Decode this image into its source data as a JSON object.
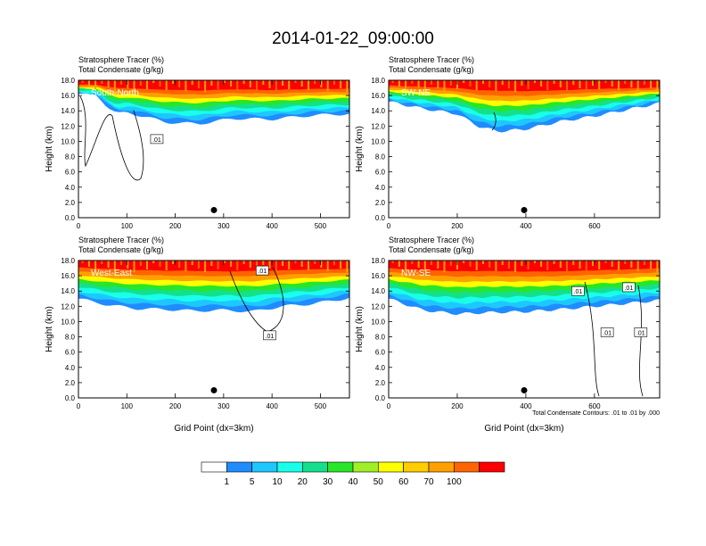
{
  "title": "2014-01-22_09:00:00",
  "chart_data": [
    {
      "type": "heatmap",
      "panel_label": "South-North",
      "header_lines": [
        "Stratosphere Tracer   (%)",
        "Total Condensate   (g/kg)"
      ],
      "ylabel": "Height (km)",
      "xlabel": "",
      "xlim": [
        0,
        560
      ],
      "ylim": [
        0,
        18
      ],
      "xticks": [
        0,
        100,
        200,
        300,
        400,
        500
      ],
      "yticks": [
        "0.0",
        "2.0",
        "4.0",
        "6.0",
        "8.0",
        "10.0",
        "12.0",
        "14.0",
        "16.0",
        "18.0"
      ],
      "marker": {
        "x": 280,
        "y": 1.0
      },
      "contour_labels": [
        {
          "text": ".01",
          "x": 162,
          "y": 10.3
        }
      ],
      "tracer_profile": {
        "x": [
          0,
          40,
          60,
          80,
          100,
          140,
          180,
          250,
          320,
          400,
          480,
          560
        ],
        "core_top": [
          17.6,
          17.6,
          17.5,
          17.4,
          17.4,
          17.3,
          17.3,
          17.2,
          17.3,
          17.2,
          17.3,
          17.3
        ],
        "base": [
          16.2,
          16.0,
          14.5,
          13.6,
          13.8,
          13.2,
          12.5,
          12.3,
          13.0,
          12.9,
          13.4,
          13.6
        ]
      }
    },
    {
      "type": "heatmap",
      "panel_label": "SW-NE",
      "header_lines": [
        "Stratosphere Tracer   (%)",
        "Total Condensate   (g/kg)"
      ],
      "ylabel": "Height (km)",
      "xlabel": "",
      "xlim": [
        0,
        790
      ],
      "ylim": [
        0,
        18
      ],
      "xticks": [
        0,
        200,
        400,
        600
      ],
      "yticks": [
        "0.0",
        "2.0",
        "4.0",
        "6.0",
        "8.0",
        "10.0",
        "12.0",
        "14.0",
        "16.0",
        "18.0"
      ],
      "marker": {
        "x": 395,
        "y": 1.0
      },
      "contour_labels": [],
      "tracer_profile": {
        "x": [
          0,
          100,
          200,
          260,
          320,
          400,
          500,
          600,
          700,
          790
        ],
        "core_top": [
          17.6,
          17.5,
          17.4,
          17.3,
          17.3,
          17.2,
          17.2,
          17.3,
          17.3,
          17.3
        ],
        "base": [
          15.2,
          14.3,
          13.6,
          12.0,
          11.3,
          11.6,
          12.6,
          13.3,
          14.2,
          15.0
        ]
      }
    },
    {
      "type": "heatmap",
      "panel_label": "West-East",
      "header_lines": [
        "Stratosphere Tracer   (%)",
        "Total Condensate   (g/kg)"
      ],
      "ylabel": "Height (km)",
      "xlabel": "Grid Point (dx=3km)",
      "xlim": [
        0,
        560
      ],
      "ylim": [
        0,
        18
      ],
      "xticks": [
        0,
        100,
        200,
        300,
        400,
        500
      ],
      "yticks": [
        "0.0",
        "2.0",
        "4.0",
        "6.0",
        "8.0",
        "10.0",
        "12.0",
        "14.0",
        "16.0",
        "18.0"
      ],
      "marker": {
        "x": 280,
        "y": 1.0
      },
      "contour_labels": [
        {
          "text": ".01",
          "x": 380,
          "y": 16.7
        },
        {
          "text": ".01",
          "x": 395,
          "y": 8.2
        }
      ],
      "tracer_profile": {
        "x": [
          0,
          60,
          120,
          180,
          240,
          300,
          360,
          420,
          480,
          560
        ],
        "core_top": [
          17.6,
          17.5,
          17.4,
          17.3,
          17.3,
          17.2,
          17.3,
          17.3,
          17.4,
          17.4
        ],
        "base": [
          13.0,
          12.2,
          11.7,
          11.6,
          11.4,
          11.5,
          11.3,
          12.0,
          12.3,
          13.1
        ]
      }
    },
    {
      "type": "heatmap",
      "panel_label": "NW-SE",
      "header_lines": [
        "Stratosphere Tracer   (%)",
        "Total Condensate   (g/kg)"
      ],
      "ylabel": "Height (km)",
      "xlabel": "Grid Point (dx=3km)",
      "xlim": [
        0,
        790
      ],
      "ylim": [
        0,
        18
      ],
      "xticks": [
        0,
        200,
        400,
        600
      ],
      "yticks": [
        "0.0",
        "2.0",
        "4.0",
        "6.0",
        "8.0",
        "10.0",
        "12.0",
        "14.0",
        "16.0",
        "18.0"
      ],
      "marker": {
        "x": 395,
        "y": 1.0
      },
      "contour_labels": [
        {
          "text": ".01",
          "x": 552,
          "y": 14.0
        },
        {
          "text": ".01",
          "x": 700,
          "y": 14.5
        },
        {
          "text": ".01",
          "x": 637,
          "y": 8.6
        },
        {
          "text": ".01",
          "x": 735,
          "y": 8.6
        }
      ],
      "footnote": "Total Condensate Contours: .01 to .01 by .000",
      "tracer_profile": {
        "x": [
          0,
          100,
          200,
          300,
          400,
          500,
          600,
          700,
          790
        ],
        "core_top": [
          17.5,
          17.4,
          17.3,
          17.3,
          17.2,
          17.2,
          17.3,
          17.4,
          17.5
        ],
        "base": [
          13.0,
          11.5,
          11.0,
          11.2,
          11.3,
          11.6,
          12.0,
          12.4,
          12.8
        ]
      }
    }
  ],
  "colorbar": {
    "labels": [
      "1",
      "5",
      "10",
      "20",
      "30",
      "40",
      "50",
      "60",
      "70",
      "100"
    ],
    "colors": [
      "#ffffff",
      "#1f8cff",
      "#1ec8ff",
      "#19ffea",
      "#14e08c",
      "#28e628",
      "#a0f028",
      "#ffff00",
      "#ffcd00",
      "#ffa000",
      "#ff6400",
      "#ff0000"
    ]
  }
}
